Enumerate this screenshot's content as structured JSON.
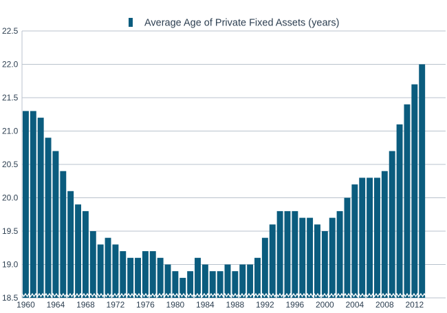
{
  "chart_data": {
    "type": "bar",
    "legend": "Average Age of Private Fixed Assets (years)",
    "legend_position": "top-center",
    "x": [
      1960,
      1961,
      1962,
      1963,
      1964,
      1965,
      1966,
      1967,
      1968,
      1969,
      1970,
      1971,
      1972,
      1973,
      1974,
      1975,
      1976,
      1977,
      1978,
      1979,
      1980,
      1981,
      1982,
      1983,
      1984,
      1985,
      1986,
      1987,
      1988,
      1989,
      1990,
      1991,
      1992,
      1993,
      1994,
      1995,
      1996,
      1997,
      1998,
      1999,
      2000,
      2001,
      2002,
      2003,
      2004,
      2005,
      2006,
      2007,
      2008,
      2009,
      2010,
      2011,
      2012,
      2013
    ],
    "values": [
      21.3,
      21.3,
      21.2,
      20.9,
      20.7,
      20.4,
      20.1,
      19.9,
      19.8,
      19.5,
      19.3,
      19.4,
      19.3,
      19.2,
      19.1,
      19.1,
      19.2,
      19.2,
      19.1,
      19.0,
      18.9,
      18.8,
      18.9,
      19.1,
      19.0,
      18.9,
      18.9,
      19.0,
      18.9,
      19.0,
      19.0,
      19.1,
      19.4,
      19.6,
      19.8,
      19.8,
      19.8,
      19.7,
      19.7,
      19.6,
      19.5,
      19.7,
      19.8,
      20.0,
      20.2,
      20.3,
      20.3,
      20.3,
      20.4,
      20.7,
      21.1,
      21.4,
      21.7,
      22.0
    ],
    "xticks": [
      "1960",
      "1964",
      "1968",
      "1972",
      "1976",
      "1980",
      "1984",
      "1988",
      "1992",
      "1996",
      "2000",
      "2004",
      "2008",
      "2012"
    ],
    "yticks": [
      "18.5",
      "19.0",
      "19.5",
      "20.0",
      "20.5",
      "21.0",
      "21.5",
      "22.0",
      "22.5"
    ],
    "ylim": [
      18.5,
      22.5
    ],
    "axis_break": true,
    "grid": "horizontal",
    "xlabel": "",
    "ylabel": "",
    "colors": {
      "bar": "#0b5c7e",
      "grid": "#b8c2cc",
      "text": "#2c3e50",
      "break": "#ffffff"
    }
  }
}
